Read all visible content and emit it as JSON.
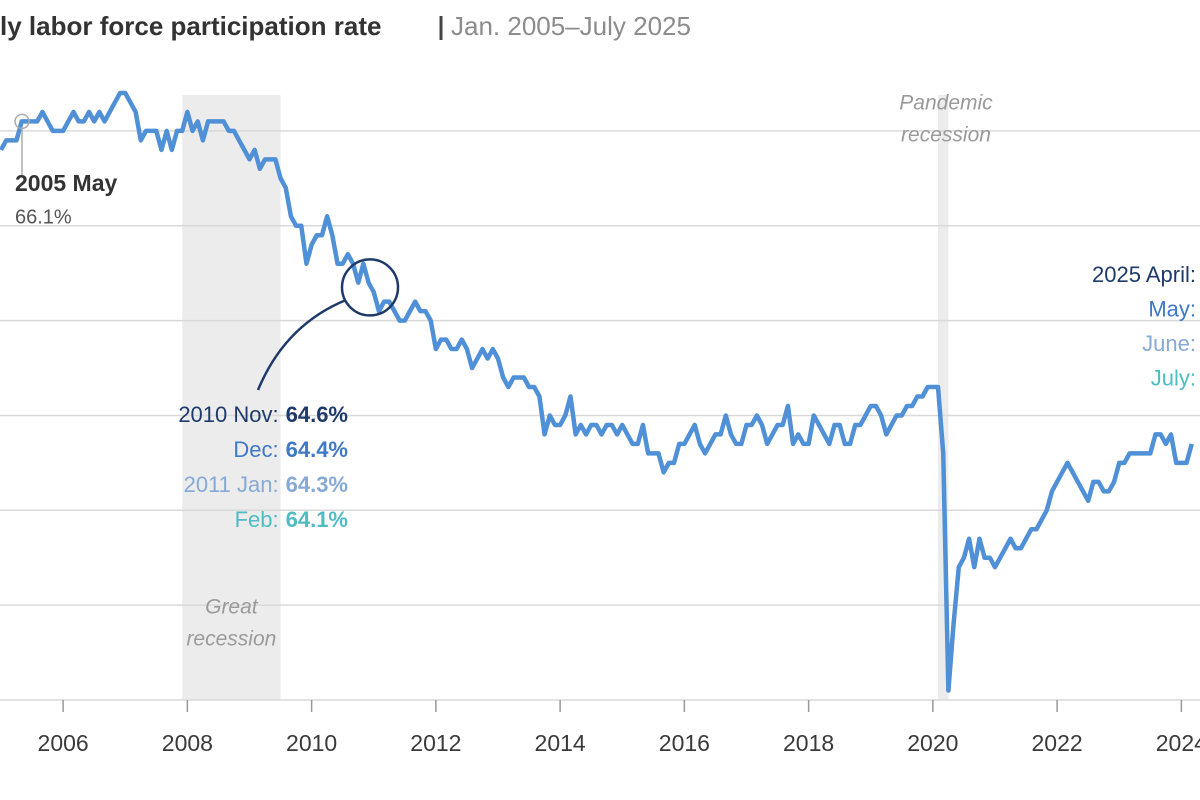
{
  "chart_data": {
    "type": "line",
    "title": "ly labor force participation rate",
    "subtitle": "Jan. 2005–July 2025",
    "color": "#4f90d6",
    "xlim": [
      2005,
      2024.3
    ],
    "xticks": [
      2006,
      2008,
      2010,
      2012,
      2014,
      2016,
      2018,
      2020,
      2022,
      2024
    ],
    "ylim": [
      60,
      66.6
    ],
    "yticks": [
      60,
      61,
      62,
      63,
      64,
      65,
      66
    ],
    "grid": true,
    "x": [
      2005,
      2005.083,
      2005.167,
      2005.25,
      2005.333,
      2005.417,
      2005.5,
      2005.583,
      2005.667,
      2005.75,
      2005.833,
      2005.917,
      2006,
      2006.083,
      2006.167,
      2006.25,
      2006.333,
      2006.417,
      2006.5,
      2006.583,
      2006.667,
      2006.75,
      2006.833,
      2006.917,
      2007,
      2007.083,
      2007.167,
      2007.25,
      2007.333,
      2007.417,
      2007.5,
      2007.583,
      2007.667,
      2007.75,
      2007.833,
      2007.917,
      2008,
      2008.083,
      2008.167,
      2008.25,
      2008.333,
      2008.417,
      2008.5,
      2008.583,
      2008.667,
      2008.75,
      2008.833,
      2008.917,
      2009,
      2009.083,
      2009.167,
      2009.25,
      2009.333,
      2009.417,
      2009.5,
      2009.583,
      2009.667,
      2009.75,
      2009.833,
      2009.917,
      2010,
      2010.083,
      2010.167,
      2010.25,
      2010.333,
      2010.417,
      2010.5,
      2010.583,
      2010.667,
      2010.75,
      2010.833,
      2010.917,
      2011,
      2011.083,
      2011.167,
      2011.25,
      2011.333,
      2011.417,
      2011.5,
      2011.583,
      2011.667,
      2011.75,
      2011.833,
      2011.917,
      2012,
      2012.083,
      2012.167,
      2012.25,
      2012.333,
      2012.417,
      2012.5,
      2012.583,
      2012.667,
      2012.75,
      2012.833,
      2012.917,
      2013,
      2013.083,
      2013.167,
      2013.25,
      2013.333,
      2013.417,
      2013.5,
      2013.583,
      2013.667,
      2013.75,
      2013.833,
      2013.917,
      2014,
      2014.083,
      2014.167,
      2014.25,
      2014.333,
      2014.417,
      2014.5,
      2014.583,
      2014.667,
      2014.75,
      2014.833,
      2014.917,
      2015,
      2015.083,
      2015.167,
      2015.25,
      2015.333,
      2015.417,
      2015.5,
      2015.583,
      2015.667,
      2015.75,
      2015.833,
      2015.917,
      2016,
      2016.083,
      2016.167,
      2016.25,
      2016.333,
      2016.417,
      2016.5,
      2016.583,
      2016.667,
      2016.75,
      2016.833,
      2016.917,
      2017,
      2017.083,
      2017.167,
      2017.25,
      2017.333,
      2017.417,
      2017.5,
      2017.583,
      2017.667,
      2017.75,
      2017.833,
      2017.917,
      2018,
      2018.083,
      2018.167,
      2018.25,
      2018.333,
      2018.417,
      2018.5,
      2018.583,
      2018.667,
      2018.75,
      2018.833,
      2018.917,
      2019,
      2019.083,
      2019.167,
      2019.25,
      2019.333,
      2019.417,
      2019.5,
      2019.583,
      2019.667,
      2019.75,
      2019.833,
      2019.917,
      2020,
      2020.083,
      2020.167,
      2020.25,
      2020.333,
      2020.417,
      2020.5,
      2020.583,
      2020.667,
      2020.75,
      2020.833,
      2020.917,
      2021,
      2021.083,
      2021.167,
      2021.25,
      2021.333,
      2021.417,
      2021.5,
      2021.583,
      2021.667,
      2021.75,
      2021.833,
      2021.917,
      2022,
      2022.083,
      2022.167,
      2022.25,
      2022.333,
      2022.417,
      2022.5,
      2022.583,
      2022.667,
      2022.75,
      2022.833,
      2022.917,
      2023,
      2023.083,
      2023.167,
      2023.25,
      2023.333,
      2023.417,
      2023.5,
      2023.583,
      2023.667,
      2023.75,
      2023.833,
      2023.917,
      2024,
      2024.083,
      2024.167
    ],
    "values": [
      65.8,
      65.9,
      65.9,
      65.9,
      66.1,
      66.1,
      66.1,
      66.1,
      66.2,
      66.1,
      66.0,
      66.0,
      66.0,
      66.1,
      66.2,
      66.1,
      66.1,
      66.2,
      66.1,
      66.2,
      66.1,
      66.2,
      66.3,
      66.4,
      66.4,
      66.3,
      66.2,
      65.9,
      66.0,
      66.0,
      66.0,
      65.8,
      66.0,
      65.8,
      66.0,
      66.0,
      66.2,
      66.0,
      66.1,
      65.9,
      66.1,
      66.1,
      66.1,
      66.1,
      66.0,
      66.0,
      65.9,
      65.8,
      65.7,
      65.8,
      65.6,
      65.7,
      65.7,
      65.7,
      65.5,
      65.4,
      65.1,
      65.0,
      65.0,
      64.6,
      64.8,
      64.9,
      64.9,
      65.1,
      64.9,
      64.6,
      64.6,
      64.7,
      64.6,
      64.4,
      64.6,
      64.4,
      64.3,
      64.1,
      64.2,
      64.2,
      64.1,
      64.0,
      64.0,
      64.1,
      64.2,
      64.1,
      64.1,
      64.0,
      63.7,
      63.8,
      63.8,
      63.7,
      63.7,
      63.8,
      63.7,
      63.5,
      63.6,
      63.7,
      63.6,
      63.7,
      63.6,
      63.4,
      63.3,
      63.4,
      63.4,
      63.4,
      63.3,
      63.3,
      63.2,
      62.8,
      63.0,
      62.9,
      62.9,
      63.0,
      63.2,
      62.8,
      62.9,
      62.8,
      62.9,
      62.9,
      62.8,
      62.9,
      62.9,
      62.8,
      62.9,
      62.8,
      62.7,
      62.7,
      62.9,
      62.6,
      62.6,
      62.6,
      62.4,
      62.5,
      62.5,
      62.7,
      62.7,
      62.8,
      62.9,
      62.7,
      62.6,
      62.7,
      62.8,
      62.8,
      63.0,
      62.8,
      62.7,
      62.7,
      62.9,
      62.9,
      63.0,
      62.9,
      62.7,
      62.8,
      62.9,
      62.9,
      63.1,
      62.7,
      62.8,
      62.7,
      62.7,
      63.0,
      62.9,
      62.8,
      62.7,
      62.9,
      62.9,
      62.7,
      62.7,
      62.9,
      62.9,
      63.0,
      63.1,
      63.1,
      63.0,
      62.8,
      62.9,
      63.0,
      63.0,
      63.1,
      63.1,
      63.2,
      63.2,
      63.3,
      63.3,
      63.3,
      62.6,
      60.1,
      60.8,
      61.4,
      61.5,
      61.7,
      61.4,
      61.7,
      61.5,
      61.5,
      61.4,
      61.5,
      61.6,
      61.7,
      61.6,
      61.6,
      61.7,
      61.8,
      61.8,
      61.9,
      62.0,
      62.2,
      62.3,
      62.4,
      62.5,
      62.4,
      62.3,
      62.2,
      62.1,
      62.3,
      62.3,
      62.2,
      62.2,
      62.3,
      62.5,
      62.5,
      62.6,
      62.6,
      62.6,
      62.6,
      62.6,
      62.8,
      62.8,
      62.7,
      62.8,
      62.5,
      62.5,
      62.5,
      62.7
    ],
    "recessions": [
      {
        "label": [
          "Great",
          "recession"
        ],
        "start": 2007.917,
        "end": 2009.5
      },
      {
        "label": [
          "Pandemic",
          "recession"
        ],
        "start": 2020.083,
        "end": 2020.25
      }
    ],
    "annotation": {
      "label": "2005 May",
      "value": 66.1,
      "value_label": "66.1%"
    },
    "callouts": [
      {
        "label": "2010 Nov:",
        "value": 64.6,
        "value_label": "64.6%",
        "color": "#1e3a6b"
      },
      {
        "label": "Dec:",
        "value": 64.4,
        "value_label": "64.4%",
        "color": "#3f78c6"
      },
      {
        "label": "2011 Jan:",
        "value": 64.3,
        "value_label": "64.3%",
        "color": "#86a9d6"
      },
      {
        "label": "Feb:",
        "value": 64.1,
        "value_label": "64.1%",
        "color": "#4fbcc4"
      }
    ],
    "right_callouts": [
      {
        "label": "2025 April:",
        "color": "#1e3a6b"
      },
      {
        "label": "May:",
        "color": "#3f78c6"
      },
      {
        "label": "June:",
        "color": "#86a9d6"
      },
      {
        "label": "July:",
        "color": "#4fbcc4"
      }
    ]
  }
}
